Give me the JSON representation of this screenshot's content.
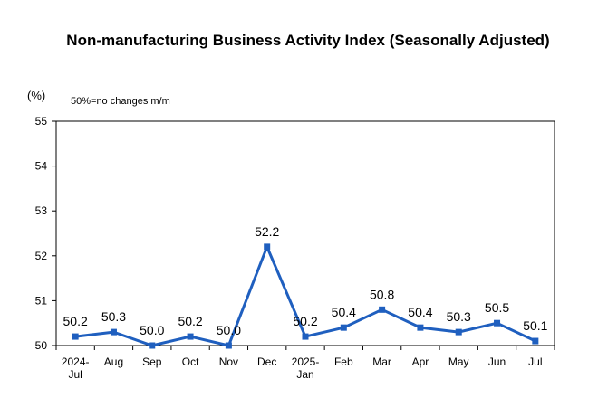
{
  "chart_data": {
    "type": "line",
    "title": "Non-manufacturing Business Activity Index (Seasonally Adjusted)",
    "unit_label": "(%)",
    "annotation": "50%=no changes m/m",
    "categories": [
      [
        "2024-",
        "Jul"
      ],
      [
        "Aug"
      ],
      [
        "Sep"
      ],
      [
        "Oct"
      ],
      [
        "Nov"
      ],
      [
        "Dec"
      ],
      [
        "2025-",
        "Jan"
      ],
      [
        "Feb"
      ],
      [
        "Mar"
      ],
      [
        "Apr"
      ],
      [
        "May"
      ],
      [
        "Jun"
      ],
      [
        "Jul"
      ]
    ],
    "values": [
      50.2,
      50.3,
      50.0,
      50.2,
      50.0,
      52.2,
      50.2,
      50.4,
      50.8,
      50.4,
      50.3,
      50.5,
      50.1
    ],
    "data_labels": [
      "50.2",
      "50.3",
      "50.0",
      "50.2",
      "50.0",
      "52.2",
      "50.2",
      "50.4",
      "50.8",
      "50.4",
      "50.3",
      "50.5",
      "50.1"
    ],
    "ylim": [
      50,
      55
    ],
    "yticks": [
      "50",
      "51",
      "52",
      "53",
      "54",
      "55"
    ],
    "grid": false,
    "legend": "none",
    "line_color": "#1f5fbf"
  }
}
